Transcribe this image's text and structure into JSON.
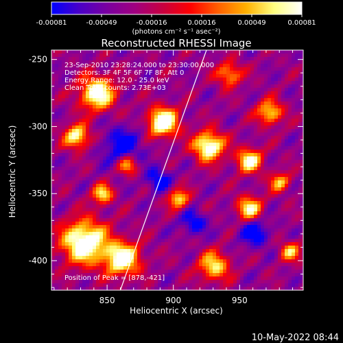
{
  "colorbar": {
    "ticks": [
      "-0.00081",
      "-0.00049",
      "-0.00016",
      "0.00016",
      "0.00049",
      "0.00081"
    ],
    "unit_label": "(photons cm⁻² s⁻¹ asec⁻²)",
    "colors": [
      "#0000ff",
      "#4a00c8",
      "#7a00a0",
      "#a00080",
      "#c80040",
      "#ff0000",
      "#ff6000",
      "#ffb000",
      "#ffff80",
      "#ffffff"
    ]
  },
  "chart_data": {
    "type": "heatmap",
    "title": "Reconstructed RHESSI Image",
    "xlabel": "Heliocentric X (arcsec)",
    "ylabel": "Heliocentric Y (arcsec)",
    "xlim": [
      808,
      998
    ],
    "ylim": [
      -422,
      -243
    ],
    "xticks": [
      850,
      900,
      950
    ],
    "yticks": [
      -250,
      -300,
      -350,
      -400
    ],
    "value_range": [
      -0.00081,
      0.00081
    ],
    "annotations": [
      "23-Sep-2010 23:28:24.000 to 23:30:00.000",
      "Detectors: 3F 4F 5F 6F 7F 8F, Att 0",
      "Energy Range: 12.0 - 25.0 keV",
      "Clean    Total counts: 2.73E+03"
    ],
    "peak_text": "Position of Peak = [878,-421]",
    "limb_line": {
      "x": [
        860,
        925
      ],
      "y": [
        -422,
        -243
      ]
    }
  },
  "footer": {
    "timestamp": "10-May-2022 08:44"
  }
}
